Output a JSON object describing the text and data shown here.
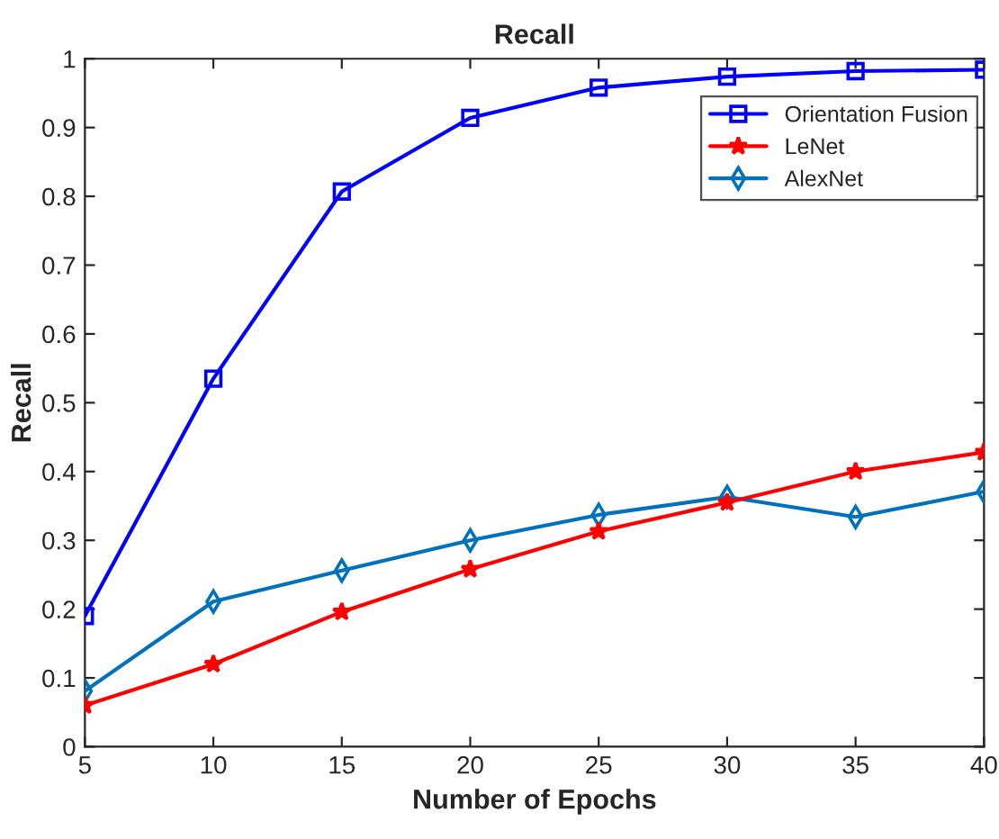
{
  "chart_data": {
    "type": "line",
    "title": "Recall",
    "xlabel": "Number of Epochs",
    "ylabel": "Recall",
    "x": [
      5,
      10,
      15,
      20,
      25,
      30,
      35,
      40
    ],
    "series": [
      {
        "name": "Orientation Fusion",
        "color": "#0000ff",
        "marker": "square",
        "values": [
          0.19,
          0.535,
          0.807,
          0.914,
          0.958,
          0.974,
          0.982,
          0.984
        ]
      },
      {
        "name": "LeNet",
        "color": "#ff0000",
        "marker": "star",
        "values": [
          0.06,
          0.12,
          0.196,
          0.258,
          0.313,
          0.355,
          0.4,
          0.428
        ]
      },
      {
        "name": "AlexNet",
        "color": "#0072bd",
        "marker": "diamond",
        "values": [
          0.081,
          0.211,
          0.256,
          0.3,
          0.337,
          0.363,
          0.334,
          0.371
        ]
      }
    ],
    "xlim": [
      5,
      40
    ],
    "xticks": [
      5,
      10,
      15,
      20,
      25,
      30,
      35,
      40
    ],
    "ylim": [
      0,
      1
    ],
    "yticks": [
      0,
      0.1,
      0.2,
      0.3,
      0.4,
      0.5,
      0.6,
      0.7,
      0.8,
      0.9,
      1
    ],
    "legend": "top right",
    "line_style": "solid"
  }
}
